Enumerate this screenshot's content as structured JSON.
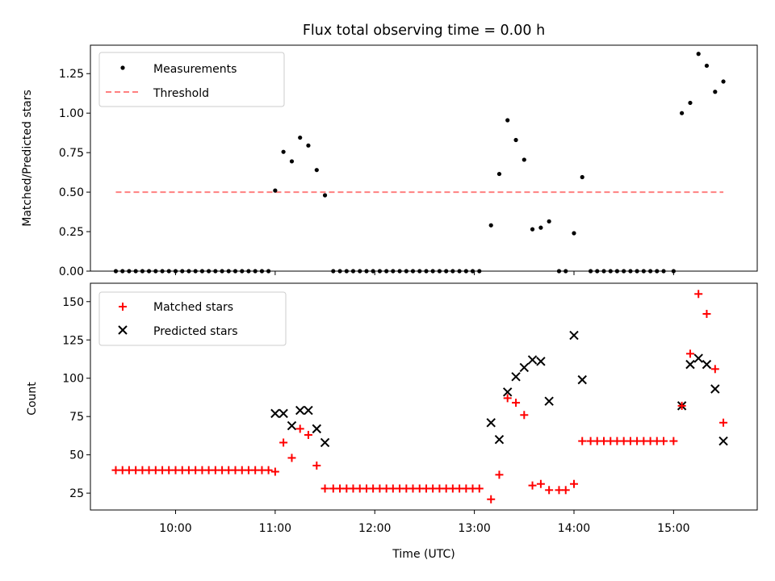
{
  "chart_data": [
    {
      "type": "scatter",
      "title": "Flux total observing time = 0.00 h",
      "xlabel": "",
      "ylabel": "Matched/Predicted stars",
      "ylim": [
        0,
        1.43
      ],
      "xlim": [
        9.145,
        15.84
      ],
      "yticks": [
        0,
        0.25,
        0.5,
        0.75,
        1.0,
        1.25
      ],
      "ytick_labels": [
        "0.00",
        "0.25",
        "0.50",
        "0.75",
        "1.00",
        "1.25"
      ],
      "xticks": [
        10,
        11,
        12,
        13,
        14,
        15
      ],
      "legend": {
        "position": "top-left",
        "entries": [
          "Measurements",
          "Threshold"
        ]
      },
      "threshold": {
        "name": "Threshold",
        "value": 0.5,
        "x_start": 9.4,
        "x_end": 15.5,
        "color": "#ff8080"
      },
      "series": [
        {
          "name": "Measurements",
          "color": "#000000",
          "x": [
            9.4,
            9.467,
            9.533,
            9.6,
            9.667,
            9.733,
            9.8,
            9.867,
            9.933,
            10.0,
            10.067,
            10.133,
            10.2,
            10.267,
            10.333,
            10.4,
            10.467,
            10.533,
            10.6,
            10.667,
            10.733,
            10.8,
            10.867,
            10.933,
            11.0,
            11.083,
            11.167,
            11.25,
            11.333,
            11.417,
            11.5,
            11.583,
            11.65,
            11.717,
            11.783,
            11.85,
            11.917,
            11.983,
            12.05,
            12.117,
            12.183,
            12.25,
            12.317,
            12.383,
            12.45,
            12.517,
            12.583,
            12.65,
            12.717,
            12.783,
            12.85,
            12.917,
            12.983,
            13.05,
            13.167,
            13.25,
            13.333,
            13.417,
            13.5,
            13.583,
            13.667,
            13.75,
            13.85,
            13.917,
            14.0,
            14.083,
            14.167,
            14.233,
            14.3,
            14.367,
            14.433,
            14.5,
            14.567,
            14.633,
            14.7,
            14.767,
            14.833,
            14.9,
            15.0,
            15.083,
            15.167,
            15.25,
            15.333,
            15.417,
            15.5
          ],
          "y": [
            0,
            0,
            0,
            0,
            0,
            0,
            0,
            0,
            0,
            0,
            0,
            0,
            0,
            0,
            0,
            0,
            0,
            0,
            0,
            0,
            0,
            0,
            0,
            0,
            0.51,
            0.755,
            0.695,
            0.845,
            0.795,
            0.64,
            0.48,
            0,
            0,
            0,
            0,
            0,
            0,
            0,
            0,
            0,
            0,
            0,
            0,
            0,
            0,
            0,
            0,
            0,
            0,
            0,
            0,
            0,
            0,
            0,
            0.29,
            0.615,
            0.955,
            0.83,
            0.705,
            0.265,
            0.275,
            0.315,
            0,
            0,
            0.24,
            0.595,
            0,
            0,
            0,
            0,
            0,
            0,
            0,
            0,
            0,
            0,
            0,
            0,
            0,
            1.0,
            1.065,
            1.375,
            1.3,
            1.135,
            1.2
          ]
        }
      ]
    },
    {
      "type": "scatter",
      "title": "",
      "xlabel": "Time (UTC)",
      "ylabel": "Count",
      "ylim": [
        14,
        162
      ],
      "xlim": [
        9.145,
        15.84
      ],
      "yticks": [
        25,
        50,
        75,
        100,
        125,
        150
      ],
      "ytick_labels": [
        "25",
        "50",
        "75",
        "100",
        "125",
        "150"
      ],
      "xticks": [
        10,
        11,
        12,
        13,
        14,
        15
      ],
      "xtick_labels": [
        "10:00",
        "11:00",
        "12:00",
        "13:00",
        "14:00",
        "15:00"
      ],
      "legend": {
        "position": "top-left",
        "entries": [
          "Matched stars",
          "Predicted stars"
        ]
      },
      "series": [
        {
          "name": "Matched stars",
          "marker": "plus",
          "color": "#ff0000",
          "x": [
            9.4,
            9.467,
            9.533,
            9.6,
            9.667,
            9.733,
            9.8,
            9.867,
            9.933,
            10.0,
            10.067,
            10.133,
            10.2,
            10.267,
            10.333,
            10.4,
            10.467,
            10.533,
            10.6,
            10.667,
            10.733,
            10.8,
            10.867,
            10.933,
            11.0,
            11.083,
            11.167,
            11.25,
            11.333,
            11.417,
            11.5,
            11.583,
            11.65,
            11.717,
            11.783,
            11.85,
            11.917,
            11.983,
            12.05,
            12.117,
            12.183,
            12.25,
            12.317,
            12.383,
            12.45,
            12.517,
            12.583,
            12.65,
            12.717,
            12.783,
            12.85,
            12.917,
            12.983,
            13.05,
            13.167,
            13.25,
            13.333,
            13.417,
            13.5,
            13.583,
            13.667,
            13.75,
            13.85,
            13.917,
            14.0,
            14.083,
            14.167,
            14.233,
            14.3,
            14.367,
            14.433,
            14.5,
            14.567,
            14.633,
            14.7,
            14.767,
            14.833,
            14.9,
            15.0,
            15.083,
            15.167,
            15.25,
            15.333,
            15.417,
            15.5
          ],
          "y": [
            40,
            40,
            40,
            40,
            40,
            40,
            40,
            40,
            40,
            40,
            40,
            40,
            40,
            40,
            40,
            40,
            40,
            40,
            40,
            40,
            40,
            40,
            40,
            40,
            39,
            58,
            48,
            67,
            63,
            43,
            28,
            28,
            28,
            28,
            28,
            28,
            28,
            28,
            28,
            28,
            28,
            28,
            28,
            28,
            28,
            28,
            28,
            28,
            28,
            28,
            28,
            28,
            28,
            28,
            21,
            37,
            87,
            84,
            76,
            30,
            31,
            27,
            27,
            27,
            31,
            59,
            59,
            59,
            59,
            59,
            59,
            59,
            59,
            59,
            59,
            59,
            59,
            59,
            59,
            82,
            116,
            155,
            142,
            106,
            71
          ]
        },
        {
          "name": "Predicted stars",
          "marker": "x",
          "color": "#000000",
          "x": [
            11.0,
            11.083,
            11.167,
            11.25,
            11.333,
            11.417,
            11.5,
            13.167,
            13.25,
            13.333,
            13.417,
            13.5,
            13.583,
            13.667,
            13.75,
            14.0,
            14.083,
            15.083,
            15.167,
            15.25,
            15.333,
            15.417,
            15.5
          ],
          "y": [
            77,
            77,
            69,
            79,
            79,
            67,
            58,
            71,
            60,
            91,
            101,
            107,
            112,
            111,
            85,
            128,
            99,
            82,
            109,
            113,
            109,
            93,
            59
          ]
        }
      ]
    }
  ]
}
